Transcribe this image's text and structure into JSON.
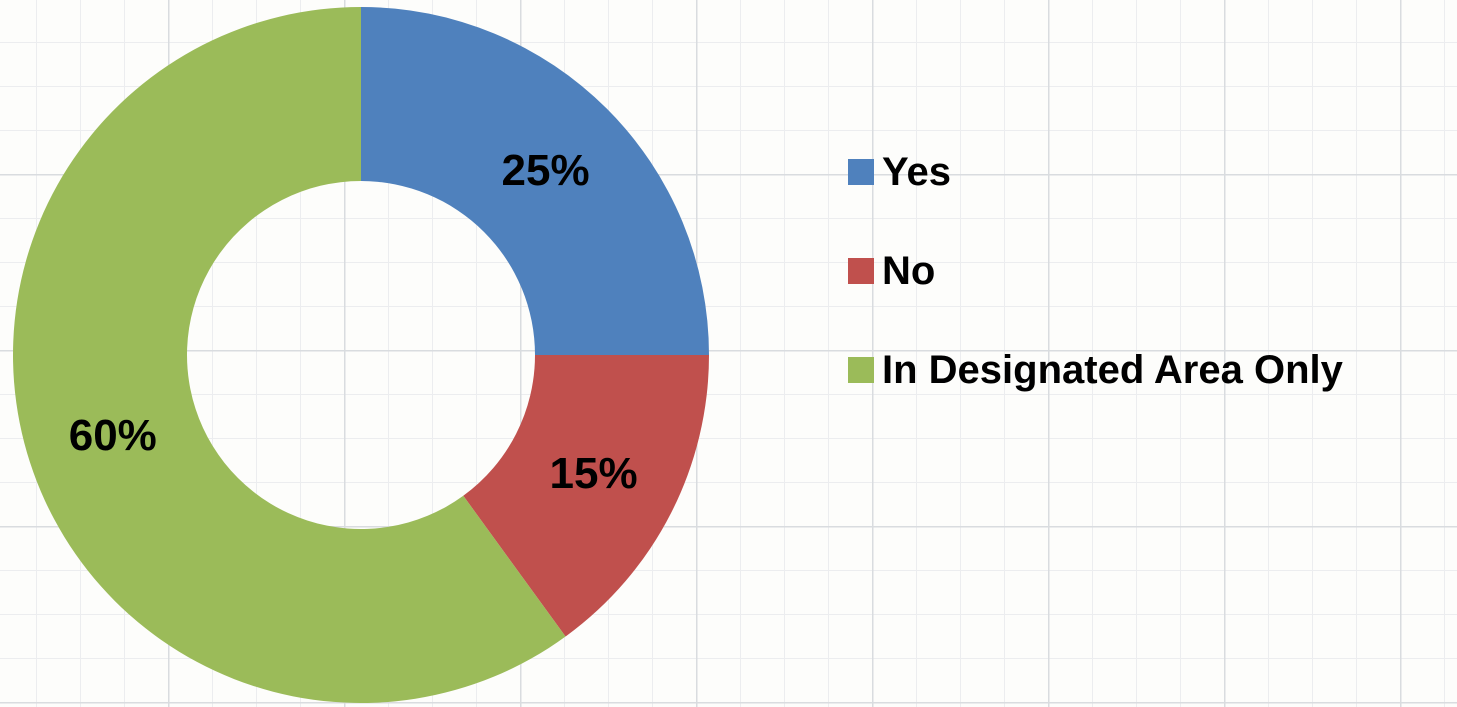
{
  "chart_data": {
    "type": "pie",
    "variant": "donut",
    "title": "",
    "legend_position": "right",
    "grid": false,
    "categories": [
      "Yes",
      "No",
      "In Designated Area Only"
    ],
    "values": [
      25,
      15,
      60
    ],
    "labels": [
      "25%",
      "15%",
      "60%"
    ],
    "colors": [
      "#4f81bd",
      "#c0504d",
      "#9bbb59"
    ],
    "start_angle_deg": 0,
    "direction": "clockwise"
  }
}
